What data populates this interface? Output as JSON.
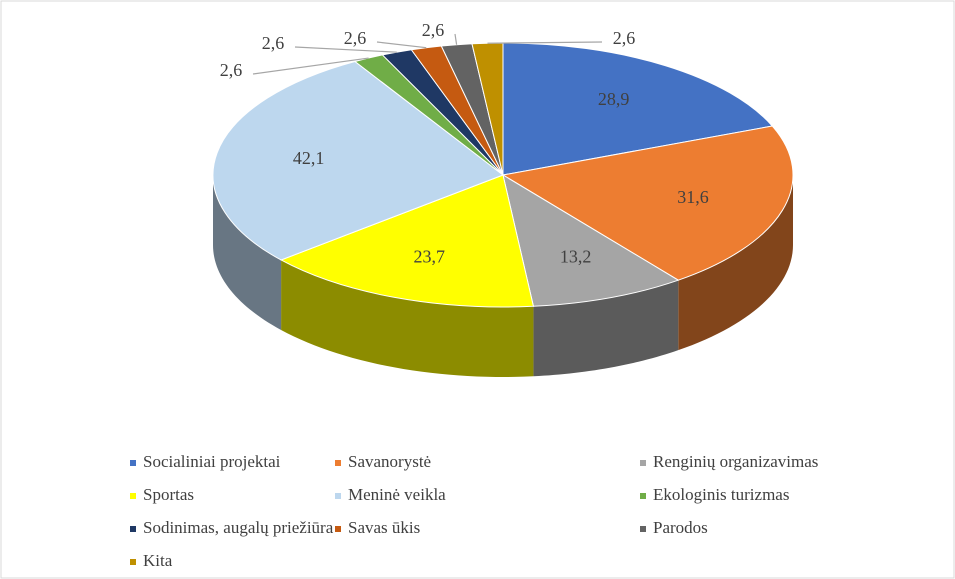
{
  "chart_data": {
    "type": "pie3d",
    "categories": [
      "Socialiniai projektai",
      "Savanorystė",
      "Renginių organizavimas",
      "Sportas",
      "Meninė veikla",
      "Ekologinis turizmas",
      "Sodinimas, augalų priežiūra",
      "Savas ūkis",
      "Parodos",
      "Kita"
    ],
    "values": [
      28.9,
      31.6,
      13.2,
      23.7,
      42.1,
      2.6,
      2.6,
      2.6,
      2.6,
      2.6
    ],
    "value_labels": [
      "28,9",
      "31,6",
      "13,2",
      "23,7",
      "42,1",
      "2,6",
      "2,6",
      "2,6",
      "2,6",
      "2,6"
    ],
    "colors": [
      "#4472c4",
      "#ed7d31",
      "#a5a5a5",
      "#ffff00",
      "#bdd7ee",
      "#70ad47",
      "#1f3864",
      "#c55a11",
      "#636363",
      "#bf9000"
    ],
    "legend": "bottom"
  }
}
